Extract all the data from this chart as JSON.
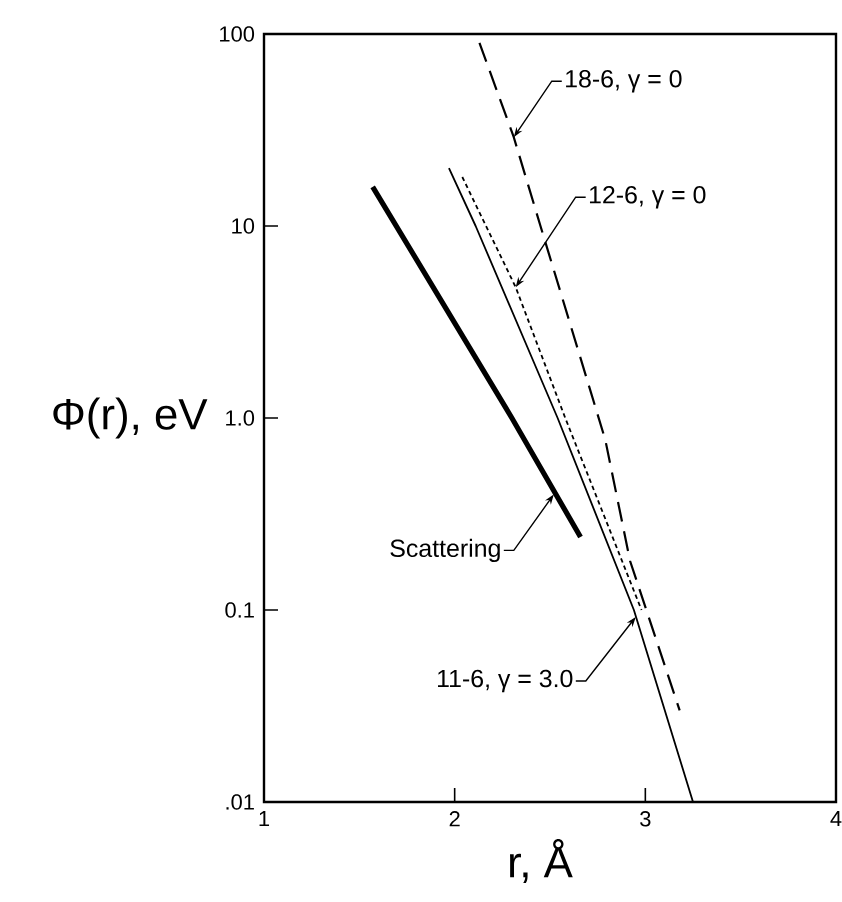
{
  "chart_data": {
    "type": "line",
    "xlabel": "r, Å",
    "ylabel": "Φ(r), eV",
    "log": "y",
    "xlim": [
      1,
      4
    ],
    "ylim": [
      0.01,
      100
    ],
    "xticks": [
      1,
      2,
      3,
      4
    ],
    "yticks": [
      {
        "value": 0.01,
        "label": ".01"
      },
      0.1,
      {
        "value": 1,
        "label": "1.0"
      },
      10,
      100
    ],
    "series": [
      {
        "color": "#000000",
        "line_style": "solid",
        "x": [
          1.57,
          2.3,
          2.66
        ],
        "values": [
          16,
          1.0,
          0.24
        ]
      },
      {
        "color": "#000000",
        "line_style": "solid",
        "x": [
          1.97,
          2.11,
          2.54,
          2.94,
          3.25
        ],
        "values": [
          20,
          10,
          1.0,
          0.1,
          0.01
        ]
      },
      {
        "color": "#000000",
        "line_style": "dotted",
        "x": [
          2.04,
          2.32,
          2.58,
          2.98
        ],
        "values": [
          18,
          4.8,
          1.0,
          0.1
        ]
      },
      {
        "color": "#000000",
        "line_style": "dashed",
        "x": [
          2.13,
          2.31,
          2.45,
          2.79,
          2.92,
          3.18
        ],
        "values": [
          90,
          29,
          10,
          0.77,
          0.18,
          0.03
        ]
      }
    ],
    "annotations": [
      {
        "text": "18-6, γ = 0",
        "x": 2.31,
        "y": 29
      },
      {
        "text": "12-6, γ = 0",
        "x": 2.32,
        "y": 4.8
      },
      {
        "text": "Scattering",
        "x": 2.52,
        "y": 0.4
      },
      {
        "text": "11-6, γ = 3.0",
        "x": 2.95,
        "y": 0.092
      }
    ]
  }
}
